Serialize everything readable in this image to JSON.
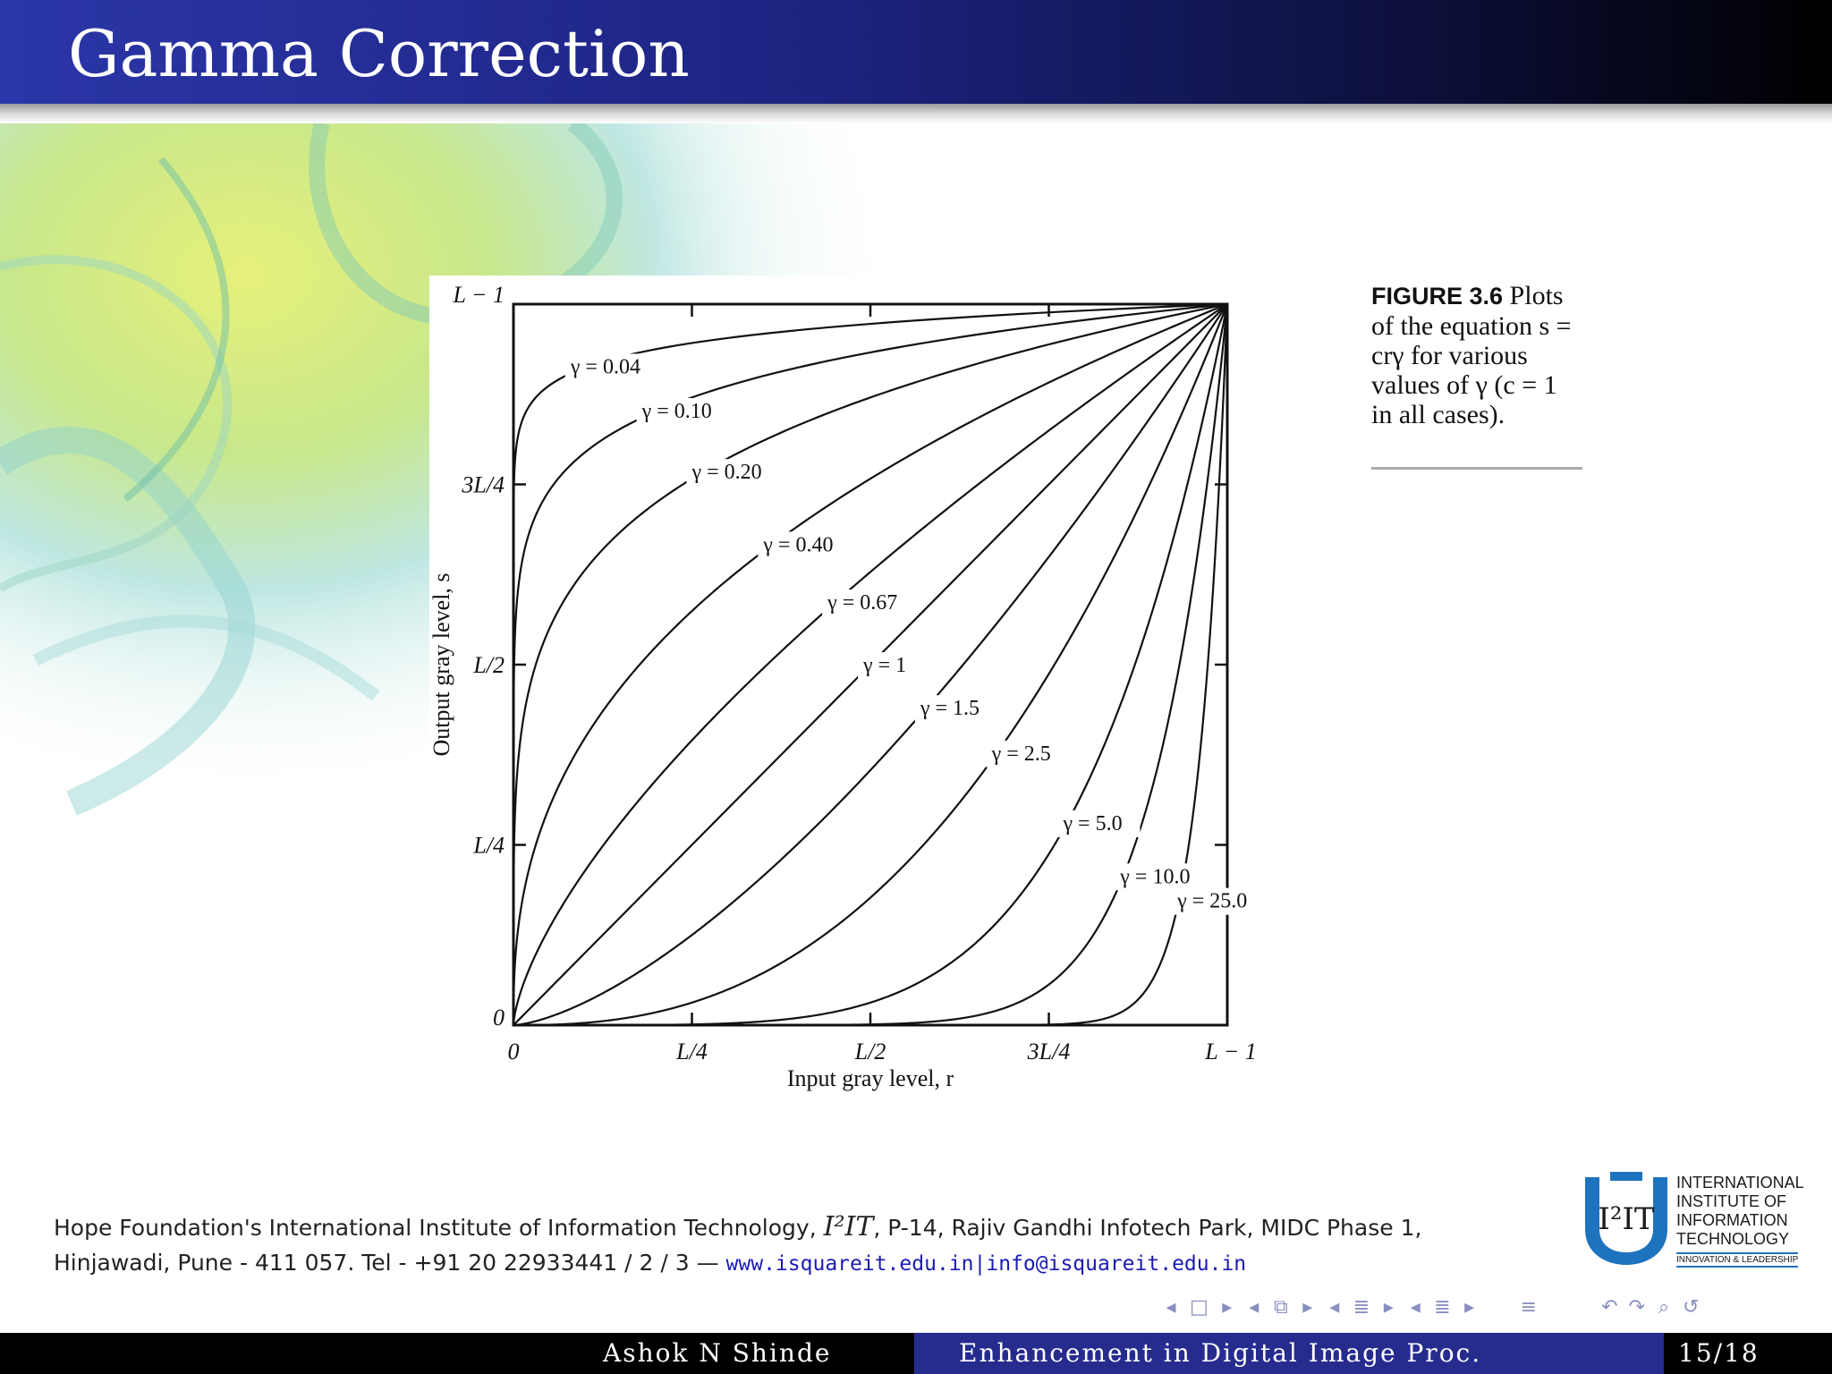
{
  "slide": {
    "title": "Gamma Correction"
  },
  "figure": {
    "caption_label": "FIGURE 3.6",
    "caption_text": "Plots of the equation s = crγ for various values of γ (c = 1 in all cases)."
  },
  "chart_data": {
    "type": "line",
    "title": "",
    "equation": "s = cr^γ",
    "xlabel": "Input gray level, r",
    "ylabel": "Output gray level, s",
    "xlim": [
      0,
      1
    ],
    "ylim": [
      0,
      1
    ],
    "x_ticks": [
      {
        "value": 0,
        "label": "0"
      },
      {
        "value": 0.25,
        "label": "L/4"
      },
      {
        "value": 0.5,
        "label": "L/2"
      },
      {
        "value": 0.75,
        "label": "3L/4"
      },
      {
        "value": 1,
        "label": "L − 1"
      }
    ],
    "y_ticks": [
      {
        "value": 0,
        "label": "0"
      },
      {
        "value": 0.25,
        "label": "L/4"
      },
      {
        "value": 0.5,
        "label": "L/2"
      },
      {
        "value": 0.75,
        "label": "3L/4"
      },
      {
        "value": 1,
        "label": "L − 1"
      }
    ],
    "series": [
      {
        "name": "γ = 0.04",
        "gamma": 0.04,
        "label_at_x": 0.08
      },
      {
        "name": "γ = 0.10",
        "gamma": 0.1,
        "label_at_x": 0.18
      },
      {
        "name": "γ = 0.20",
        "gamma": 0.2,
        "label_at_x": 0.25
      },
      {
        "name": "γ = 0.40",
        "gamma": 0.4,
        "label_at_x": 0.35
      },
      {
        "name": "γ = 0.67",
        "gamma": 0.67,
        "label_at_x": 0.44
      },
      {
        "name": "γ = 1",
        "gamma": 1.0,
        "label_at_x": 0.49
      },
      {
        "name": "γ = 1.5",
        "gamma": 1.5,
        "label_at_x": 0.57
      },
      {
        "name": "γ = 2.5",
        "gamma": 2.5,
        "label_at_x": 0.67
      },
      {
        "name": "γ = 5.0",
        "gamma": 5.0,
        "label_at_x": 0.77
      },
      {
        "name": "γ = 10.0",
        "gamma": 10.0,
        "label_at_x": 0.85
      },
      {
        "name": "γ = 25.0",
        "gamma": 25.0,
        "label_at_x": 0.93
      }
    ],
    "grid": false,
    "legend": "inline labels on curves"
  },
  "footer": {
    "address_line1_a": "Hope Foundation's International Institute of Information Technology, ",
    "brand": "I²IT",
    "address_line1_b": ", P-14, Rajiv Gandhi Infotech Park, MIDC Phase 1,",
    "address_line2": "Hinjawadi, Pune - 411 057.  Tel - +91 20 22933441 / 2 / 3 — ",
    "website": "www.isquareit.edu.in",
    "separator": "|",
    "email": "info@isquareit.edu.in"
  },
  "logo": {
    "mark": "I²IT",
    "name_line1": "INTERNATIONAL",
    "name_line2": "INSTITUTE OF",
    "name_line3": "INFORMATION",
    "name_line4": "TECHNOLOGY",
    "tagline": "INNOVATION & LEADERSHIP"
  },
  "bottom_bar": {
    "author": "Ashok N Shinde",
    "short_title": "Enhancement in Digital Image Proc.",
    "page": "15/18"
  },
  "colors": {
    "title_bar_start": "#2b36a8",
    "title_bar_end": "#000000",
    "bottom_bar_mid": "#262c8e",
    "link": "#1b1bb4",
    "curve": "#111111"
  },
  "nav": {
    "icons": [
      "nav-prev-frame-icon",
      "nav-frame-icon",
      "nav-next-frame-icon",
      "nav-prev-subsection-icon",
      "nav-subsection-icon",
      "nav-next-subsection-icon",
      "nav-prev-section-icon",
      "nav-section-icon",
      "nav-next-section-icon",
      "nav-appendix-icon",
      "nav-search-icon"
    ]
  }
}
